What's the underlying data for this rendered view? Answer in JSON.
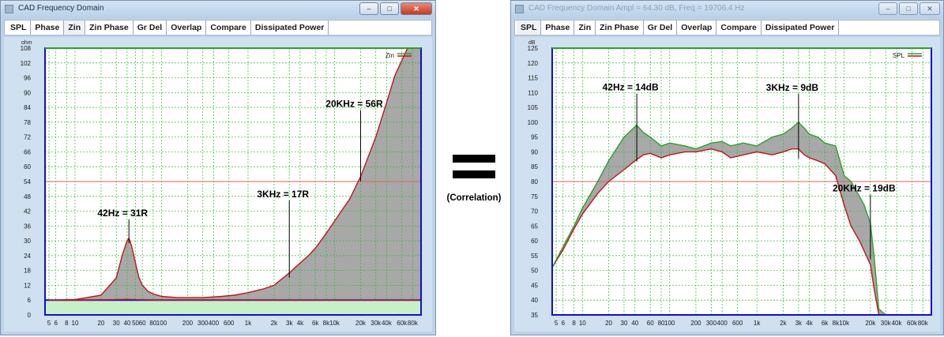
{
  "left_window": {
    "title": "CAD Frequency Domain",
    "buttons": {
      "minimize": "–",
      "maximize": "□",
      "close": "✕"
    },
    "tabs": [
      "SPL",
      "Phase",
      "Zin",
      "Zin Phase",
      "Gr Del",
      "Overlap",
      "Compare",
      "Dissipated Power"
    ],
    "active_tab": "Zin"
  },
  "right_window": {
    "title": "CAD Frequency Domain   Ampl = 64.30 dB, Freq = 19706.4 Hz",
    "buttons": {
      "minimize": "–",
      "maximize": "□",
      "close": "✕"
    },
    "tabs": [
      "SPL",
      "Phase",
      "Zin",
      "Zin Phase",
      "Gr Del",
      "Overlap",
      "Compare",
      "Dissipated Power"
    ],
    "active_tab": "SPL"
  },
  "middle": {
    "symbol": "=",
    "label": "(Correlation)"
  },
  "colors": {
    "upper_curve": "#2ca02c",
    "lower_curve": "#c0141c",
    "fill": "#a8a8a8",
    "grid": "#2fb82f",
    "plot_bg": "#ffffff",
    "frame": "#1010c8",
    "ref_line": "#e06060"
  },
  "chart_data": [
    {
      "type": "area",
      "title": "",
      "ylabel": "ohm",
      "xlabel": "",
      "x_scale": "log",
      "xlim": [
        4.5,
        100000
      ],
      "ylim": [
        0,
        108
      ],
      "yticks": [
        0,
        6,
        12,
        18,
        24,
        30,
        36,
        42,
        48,
        54,
        60,
        66,
        72,
        78,
        84,
        90,
        96,
        102,
        108
      ],
      "xtick_labels": [
        "5",
        "6",
        "8",
        "10",
        "20",
        "30",
        "40",
        "50",
        "60",
        "80",
        "100",
        "200",
        "300",
        "400",
        "600",
        "1k",
        "2k",
        "3k",
        "4k",
        "6k",
        "8k",
        "10k",
        "20k",
        "30k",
        "40k",
        "60k",
        "80k"
      ],
      "xtick_values": [
        5,
        6,
        8,
        10,
        20,
        30,
        40,
        50,
        60,
        80,
        100,
        200,
        300,
        400,
        600,
        1000,
        2000,
        3000,
        4000,
        6000,
        8000,
        10000,
        20000,
        30000,
        40000,
        60000,
        80000
      ],
      "legend": "Zin",
      "ref_line": 54,
      "floor_line": 6,
      "series": [
        {
          "name": "Zin",
          "role": "upper",
          "x": [
            5,
            10,
            20,
            30,
            35,
            40,
            42,
            45,
            50,
            55,
            60,
            70,
            80,
            100,
            150,
            200,
            300,
            500,
            700,
            1000,
            1500,
            2000,
            3000,
            4000,
            5000,
            6000,
            8000,
            10000,
            15000,
            20000,
            30000,
            40000,
            50000,
            70000,
            100000
          ],
          "y": [
            6,
            6.2,
            8,
            15,
            24,
            30,
            31,
            28,
            21,
            15,
            12,
            9.5,
            8.5,
            7.5,
            7,
            7,
            7,
            7.5,
            8,
            9,
            10.5,
            12,
            17,
            21,
            24,
            27,
            33,
            38,
            47,
            56,
            72,
            86,
            97,
            108,
            108
          ]
        },
        {
          "name": "",
          "role": "lower",
          "x": [
            5,
            10,
            20,
            30,
            40,
            50,
            60,
            80,
            100,
            150,
            200,
            300,
            500,
            700,
            1000,
            1500,
            2000,
            3000,
            4000,
            5000,
            6000,
            8000,
            10000,
            15000,
            20000,
            30000,
            40000,
            50000,
            70000,
            100000
          ],
          "y": [
            6,
            6,
            6.1,
            6.2,
            6.3,
            6.2,
            6.1,
            6,
            6,
            6,
            6,
            6,
            6,
            6,
            6,
            6,
            6,
            6,
            6,
            6,
            6,
            6,
            6,
            6,
            6,
            6,
            6,
            6,
            6,
            6
          ]
        }
      ],
      "annotations": [
        {
          "text": "42Hz = 31R",
          "x": 42,
          "y": 31
        },
        {
          "text": "3KHz = 17R",
          "x": 3000,
          "y": 17
        },
        {
          "text": "20KHz = 56R",
          "x": 20000,
          "y": 56
        }
      ]
    },
    {
      "type": "area",
      "title": "",
      "ylabel": "dB",
      "xlabel": "",
      "x_scale": "log",
      "xlim": [
        4.5,
        100000
      ],
      "ylim": [
        35,
        125
      ],
      "yticks": [
        35,
        40,
        45,
        50,
        55,
        60,
        65,
        70,
        75,
        80,
        85,
        90,
        95,
        100,
        105,
        110,
        115,
        120,
        125
      ],
      "xtick_labels": [
        "5",
        "6",
        "8",
        "10",
        "20",
        "30",
        "40",
        "60",
        "80",
        "100",
        "200",
        "300",
        "400",
        "600",
        "1k",
        "2k",
        "3k",
        "4k",
        "6k",
        "8k",
        "10k",
        "20k",
        "30k",
        "40k",
        "60k",
        "80k"
      ],
      "xtick_values": [
        5,
        6,
        8,
        10,
        20,
        30,
        40,
        60,
        80,
        100,
        200,
        300,
        400,
        600,
        1000,
        2000,
        3000,
        4000,
        6000,
        8000,
        10000,
        20000,
        30000,
        40000,
        60000,
        80000
      ],
      "legend": "SPL",
      "ref_line": 80,
      "series": [
        {
          "name": "SPL",
          "role": "upper",
          "x": [
            4.5,
            6,
            8,
            10,
            15,
            20,
            30,
            40,
            42,
            50,
            60,
            80,
            100,
            150,
            200,
            300,
            400,
            500,
            700,
            1000,
            1500,
            2000,
            2500,
            3000,
            3500,
            4000,
            5000,
            6000,
            8000,
            10000,
            12000,
            15000,
            17000,
            20000,
            22000,
            25000,
            30000
          ],
          "y": [
            51,
            58,
            65,
            71,
            80,
            87,
            95,
            98.5,
            99,
            96.5,
            95,
            92,
            93,
            92,
            91,
            93,
            93.5,
            92,
            93,
            92,
            95,
            96,
            98,
            100,
            98,
            96,
            95,
            93,
            92,
            82,
            80,
            75,
            72,
            66,
            55,
            37,
            35
          ]
        },
        {
          "name": "",
          "role": "lower",
          "x": [
            4.5,
            6,
            8,
            10,
            15,
            20,
            30,
            40,
            50,
            60,
            80,
            100,
            150,
            200,
            300,
            400,
            500,
            700,
            1000,
            1500,
            2000,
            2500,
            3000,
            3500,
            4000,
            5000,
            6000,
            8000,
            10000,
            12000,
            15000,
            20000,
            22000,
            25000
          ],
          "y": [
            51,
            57,
            64,
            69,
            76,
            80,
            84,
            87,
            89,
            89.5,
            88,
            89,
            90,
            90,
            91,
            90,
            88,
            89,
            90,
            89,
            90,
            91,
            91,
            89,
            88,
            87,
            86,
            82,
            72,
            65,
            60,
            52,
            44,
            35
          ]
        }
      ],
      "annotations": [
        {
          "text": "42Hz = 14dB",
          "x": 42,
          "y": 99
        },
        {
          "text": "3KHz = 9dB",
          "x": 3000,
          "y": 100
        },
        {
          "text": "20KHz = 19dB",
          "x": 20000,
          "y": 66
        }
      ]
    }
  ]
}
